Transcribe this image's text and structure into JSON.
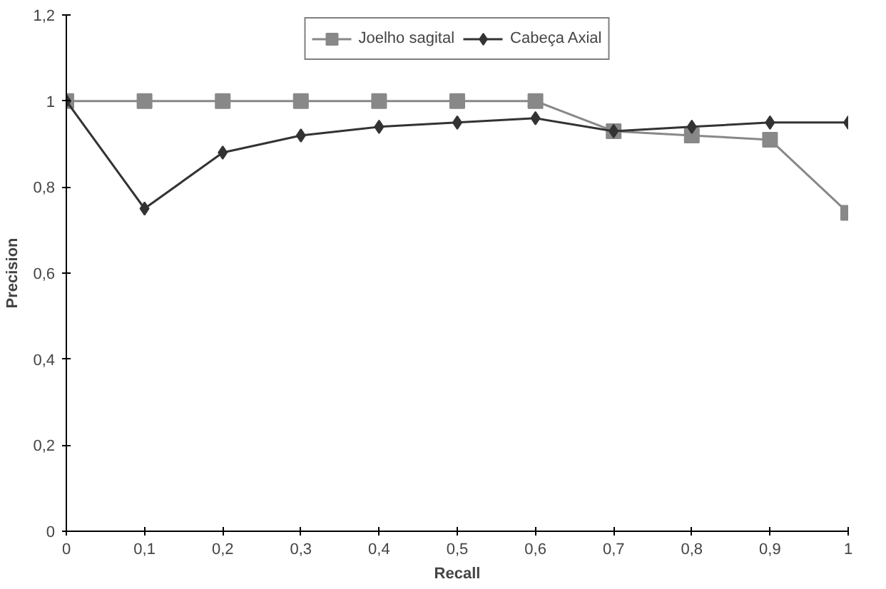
{
  "chart_data": {
    "type": "line",
    "xlabel": "Recall",
    "ylabel": "Precision",
    "x": [
      0,
      0.1,
      0.2,
      0.3,
      0.4,
      0.5,
      0.6,
      0.7,
      0.8,
      0.9,
      1
    ],
    "series": [
      {
        "name": "Joelho sagital",
        "color": "#888888",
        "marker": "square",
        "values": [
          1,
          1,
          1,
          1,
          1,
          1,
          1,
          0.93,
          0.92,
          0.91,
          0.74
        ]
      },
      {
        "name": "Cabeça Axial",
        "color": "#333333",
        "marker": "diamond",
        "values": [
          1,
          0.75,
          0.88,
          0.92,
          0.94,
          0.95,
          0.96,
          0.93,
          0.94,
          0.95,
          0.95
        ]
      }
    ],
    "xlim": [
      0,
      1
    ],
    "xticks": [
      0,
      {
        "value": 0.1,
        "label": "0,1"
      },
      {
        "value": 0.2,
        "label": "0,2"
      },
      {
        "value": 0.3,
        "label": "0,3"
      },
      {
        "value": 0.4,
        "label": "0,4"
      },
      {
        "value": 0.5,
        "label": "0,5"
      },
      {
        "value": 0.6,
        "label": "0,6"
      },
      {
        "value": 0.7,
        "label": "0,7"
      },
      {
        "value": 0.8,
        "label": "0,8"
      },
      {
        "value": 0.9,
        "label": "0,9"
      },
      1
    ],
    "ylim": [
      0,
      1.2
    ],
    "yticks": [
      0,
      {
        "value": 0.2,
        "label": "0,2"
      },
      {
        "value": 0.4,
        "label": "0,4"
      },
      {
        "value": 0.6,
        "label": "0,6"
      },
      {
        "value": 0.8,
        "label": "0,8"
      },
      1,
      {
        "value": 1.2,
        "label": "1,2"
      }
    ],
    "grid": false,
    "legend": "top",
    "line_style": "solid"
  }
}
